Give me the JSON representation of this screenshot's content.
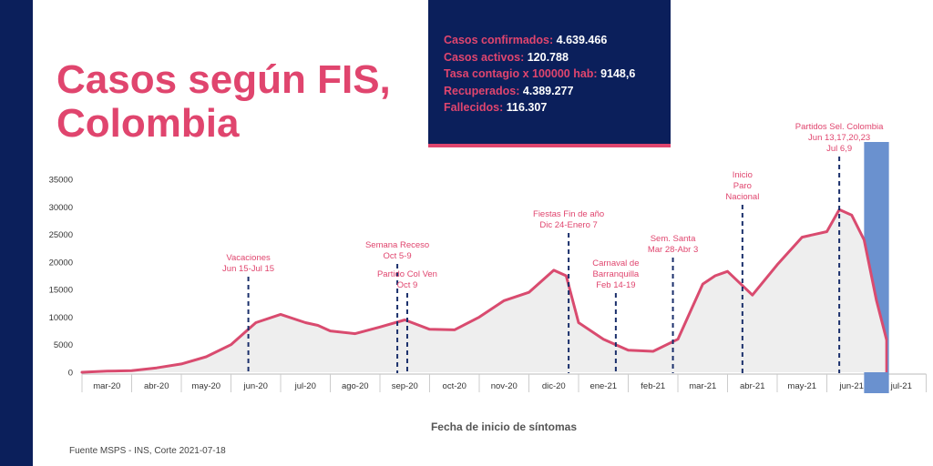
{
  "title_line1": "Casos según FIS,",
  "title_line2": "Colombia",
  "stats": [
    {
      "label": "Casos confirmados:",
      "value": "4.639.466"
    },
    {
      "label": "Casos activos:",
      "value": "120.788"
    },
    {
      "label": "Tasa contagio x 100000 hab:",
      "value": "9148,6"
    },
    {
      "label": "Recuperados:",
      "value": "4.389.277"
    },
    {
      "label": "Fallecidos:",
      "value": "116.307"
    }
  ],
  "source": "Fuente MSPS - INS, Corte 2021-07-18",
  "colors": {
    "navy": "#0b1f5b",
    "accent": "#e0456e",
    "line": "#d94b6f",
    "area": "#eeeeee",
    "highlight": "#6a91cf"
  },
  "chart_data": {
    "type": "area",
    "xlabel": "Fecha de inicio de síntomas",
    "ylabel": "",
    "ylim": [
      0,
      35000
    ],
    "yticks": [
      0,
      5000,
      10000,
      15000,
      20000,
      25000,
      30000,
      35000
    ],
    "categories": [
      "mar-20",
      "abr-20",
      "may-20",
      "jun-20",
      "jul-20",
      "ago-20",
      "sep-20",
      "oct-20",
      "nov-20",
      "dic-20",
      "ene-21",
      "feb-21",
      "mar-21",
      "abr-21",
      "may-21",
      "jun-21",
      "jul-21"
    ],
    "series": [
      {
        "x": [
          0,
          0.5,
          1,
          1.5,
          2,
          2.5,
          3,
          3.5,
          4,
          4.5,
          4.75,
          5,
          5.5,
          6,
          6.5,
          7,
          7.5,
          8,
          8.5,
          9,
          9.5,
          9.75,
          10,
          10.5,
          11,
          11.5,
          12,
          12.3,
          12.5,
          12.75,
          13,
          13.5,
          14,
          14.5,
          15,
          15.25,
          15.5,
          15.75,
          16,
          16.2
        ],
        "y": [
          0,
          200,
          300,
          800,
          1500,
          2800,
          5000,
          9000,
          10500,
          9000,
          8500,
          7500,
          7000,
          8200,
          9500,
          7800,
          7700,
          10000,
          13000,
          14500,
          18500,
          17500,
          9000,
          6000,
          4000,
          3800,
          6000,
          12000,
          16000,
          17500,
          18300,
          14000,
          19500,
          24500,
          25500,
          29500,
          28500,
          24000,
          13000,
          6000
        ]
      }
    ],
    "annotations": [
      {
        "x": 3.35,
        "lines": [
          "Vacaciones",
          "Jun 15-Jul 15"
        ]
      },
      {
        "x": 6.35,
        "lines": [
          "Semana Receso",
          "Oct 5-9"
        ]
      },
      {
        "x": 6.55,
        "lines": [
          "Partido Col Ven",
          "Oct 9"
        ]
      },
      {
        "x": 9.8,
        "lines": [
          "Fiestas Fin de año",
          "Dic 24-Enero 7"
        ]
      },
      {
        "x": 10.75,
        "lines": [
          "Carnaval de",
          "Barranquilla",
          "Feb 14-19"
        ]
      },
      {
        "x": 11.9,
        "lines": [
          "Sem. Santa",
          "Mar 28-Abr 3"
        ]
      },
      {
        "x": 13.3,
        "lines": [
          "Inicio",
          "Paro",
          "Nacional"
        ]
      },
      {
        "x": 15.25,
        "lines": [
          "Partidos Sel. Colombia",
          "Jun 13,17,20,23",
          "Jul 6,9"
        ]
      }
    ]
  }
}
